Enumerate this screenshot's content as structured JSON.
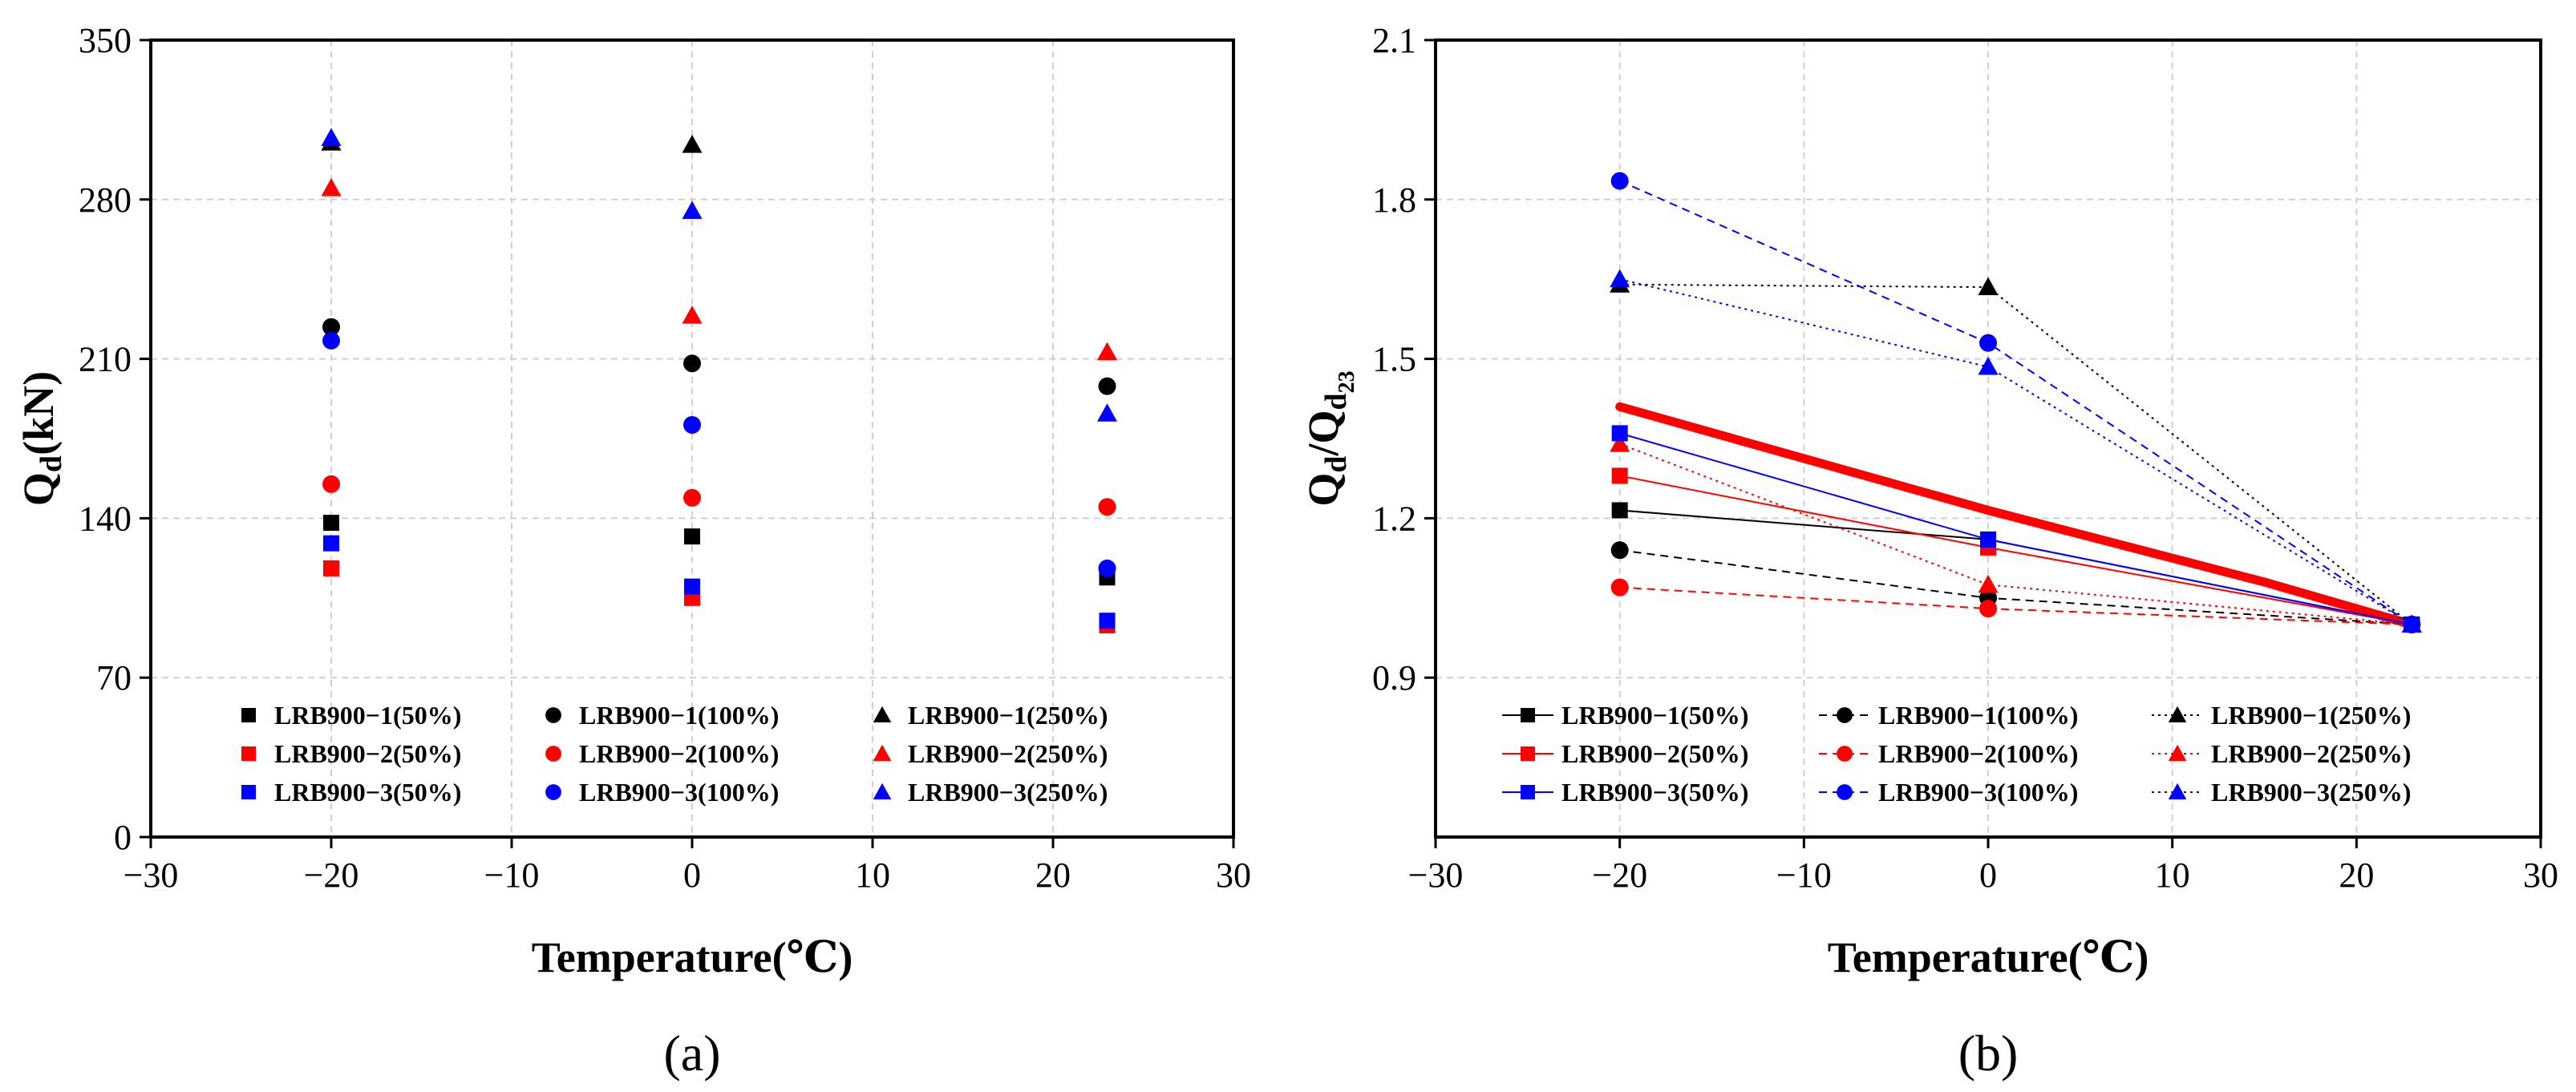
{
  "chart_data": [
    {
      "type": "scatter",
      "panel_label": "(a)",
      "xlabel": "Temperature(℃)",
      "ylabel": "Qd(kN)",
      "ylabel_parts": [
        "Q",
        "d",
        "(kN)"
      ],
      "xlim": [
        -30,
        30
      ],
      "ylim": [
        0,
        350
      ],
      "xticks": [
        -30,
        -20,
        -10,
        0,
        10,
        20,
        30
      ],
      "yticks": [
        0,
        70,
        140,
        210,
        280,
        350
      ],
      "xtick_labels": [
        "−30",
        "−20",
        "−10",
        "0",
        "10",
        "20",
        "30"
      ],
      "ytick_labels": [
        "0",
        "70",
        "140",
        "210",
        "280",
        "350"
      ],
      "grid": true,
      "legend_position": "lower-center",
      "x": [
        -20,
        0,
        23
      ],
      "series": [
        {
          "name": "LRB900−1(50%)",
          "marker": "square",
          "color": "#000000",
          "values": [
            138,
            132,
            114
          ]
        },
        {
          "name": "LRB900−1(100%)",
          "marker": "circle",
          "color": "#000000",
          "values": [
            224,
            208,
            198
          ]
        },
        {
          "name": "LRB900−1(250%)",
          "marker": "triangle",
          "color": "#000000",
          "values": [
            305,
            304,
            null
          ]
        },
        {
          "name": "LRB900−2(50%)",
          "marker": "square",
          "color": "#ff0000",
          "values": [
            118,
            105,
            93
          ]
        },
        {
          "name": "LRB900−2(100%)",
          "marker": "circle",
          "color": "#ff0000",
          "values": [
            155,
            149,
            145
          ]
        },
        {
          "name": "LRB900−2(250%)",
          "marker": "triangle",
          "color": "#ff0000",
          "values": [
            285,
            229,
            213
          ]
        },
        {
          "name": "LRB900−3(50%)",
          "marker": "square",
          "color": "#0000ff",
          "values": [
            129,
            110,
            95
          ]
        },
        {
          "name": "LRB900−3(100%)",
          "marker": "circle",
          "color": "#0000ff",
          "values": [
            218,
            181,
            118
          ]
        },
        {
          "name": "LRB900−3(250%)",
          "marker": "triangle",
          "color": "#0000ff",
          "values": [
            307,
            275,
            186
          ]
        }
      ]
    },
    {
      "type": "line",
      "panel_label": "(b)",
      "xlabel": "Temperature(℃)",
      "ylabel": "Qd/Qd23",
      "ylabel_parts": [
        "Q",
        "d",
        "/Q",
        "d",
        "23"
      ],
      "xlim": [
        -30,
        30
      ],
      "ylim": [
        0.6,
        2.1
      ],
      "xticks": [
        -30,
        -20,
        -10,
        0,
        10,
        20,
        30
      ],
      "yticks": [
        0.9,
        1.2,
        1.5,
        1.8,
        2.1
      ],
      "xtick_labels": [
        "−30",
        "−20",
        "−10",
        "0",
        "10",
        "20",
        "30"
      ],
      "ytick_labels": [
        "0.9",
        "1.2",
        "1.5",
        "1.8",
        "2.1"
      ],
      "grid": true,
      "legend_position": "lower-center",
      "x": [
        -20,
        0,
        23
      ],
      "series": [
        {
          "name": "LRB900−1(50%)",
          "marker": "square",
          "color": "#000000",
          "dash": "solid",
          "values": [
            1.215,
            1.16,
            1.0
          ]
        },
        {
          "name": "LRB900−1(100%)",
          "marker": "circle",
          "color": "#000000",
          "dash": "dashed",
          "values": [
            1.14,
            1.05,
            1.0
          ]
        },
        {
          "name": "LRB900−1(250%)",
          "marker": "triangle",
          "color": "#000000",
          "dash": "dotted",
          "values": [
            1.64,
            1.635,
            1.0
          ]
        },
        {
          "name": "LRB900−2(50%)",
          "marker": "square",
          "color": "#ff0000",
          "dash": "solid",
          "values": [
            1.28,
            1.145,
            1.0
          ]
        },
        {
          "name": "LRB900−2(100%)",
          "marker": "circle",
          "color": "#ff0000",
          "dash": "dashed",
          "values": [
            1.07,
            1.03,
            1.0
          ]
        },
        {
          "name": "LRB900−2(250%)",
          "marker": "triangle",
          "color": "#ff0000",
          "dash": "dotted",
          "values": [
            1.34,
            1.075,
            1.0
          ]
        },
        {
          "name": "LRB900−3(50%)",
          "marker": "square",
          "color": "#0000ff",
          "dash": "solid",
          "values": [
            1.36,
            1.16,
            1.0
          ]
        },
        {
          "name": "LRB900−3(100%)",
          "marker": "circle",
          "color": "#0000ff",
          "dash": "dashed",
          "values": [
            1.835,
            1.53,
            1.0
          ]
        },
        {
          "name": "LRB900−3(250%)",
          "marker": "triangle",
          "color": "#0000ff",
          "dash": "dotted",
          "values": [
            1.65,
            1.485,
            1.0
          ]
        }
      ],
      "fit_line": {
        "color": "#ff0000",
        "x": [
          -20,
          0,
          15,
          23
        ],
        "values": [
          1.41,
          1.215,
          1.08,
          1.0
        ]
      }
    }
  ]
}
